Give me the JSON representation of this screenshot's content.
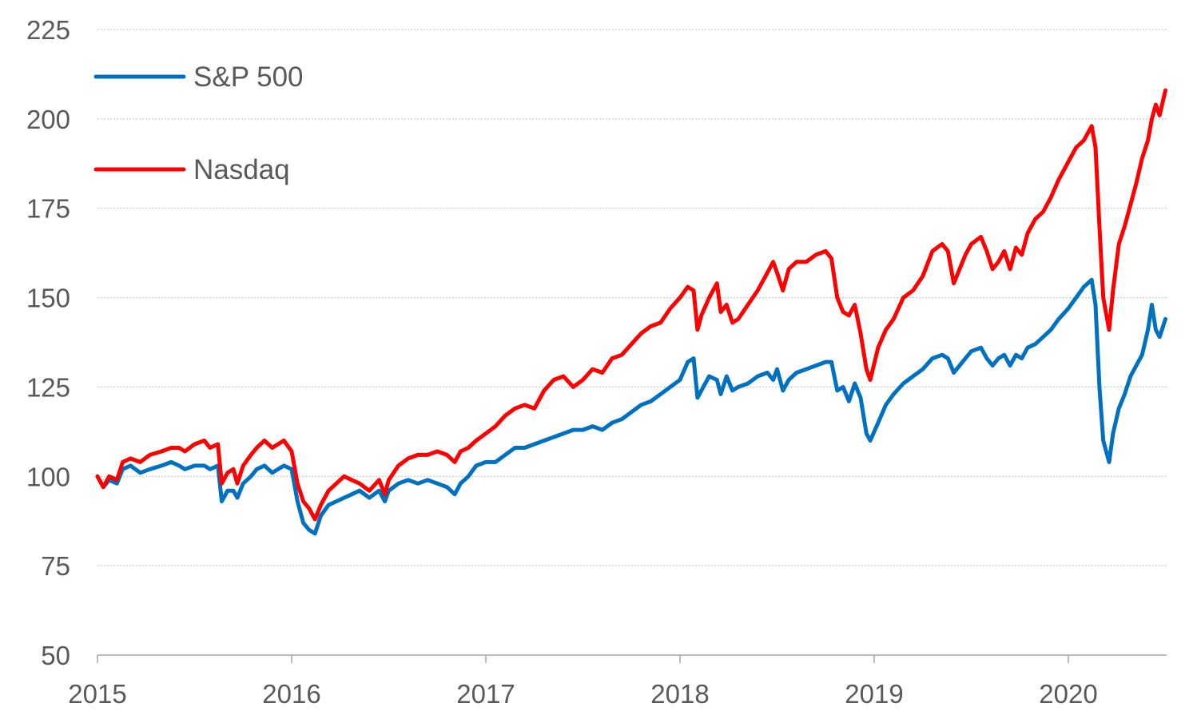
{
  "chart_data": {
    "type": "line",
    "title": "",
    "xlabel": "",
    "ylabel": "",
    "ylim": [
      50,
      225
    ],
    "yticks": [
      50,
      75,
      100,
      125,
      150,
      175,
      200,
      225
    ],
    "xlim": [
      2015.0,
      2020.5
    ],
    "xticks": [
      "2015",
      "2016",
      "2017",
      "2018",
      "2019",
      "2020"
    ],
    "grid": "horizontal dotted",
    "legend": "top-left",
    "series": [
      {
        "name": "S&P 500",
        "color": "#0070C0",
        "points": [
          [
            2015.0,
            100
          ],
          [
            2015.03,
            97
          ],
          [
            2015.06,
            99
          ],
          [
            2015.1,
            98
          ],
          [
            2015.13,
            102
          ],
          [
            2015.17,
            103
          ],
          [
            2015.22,
            101
          ],
          [
            2015.27,
            102
          ],
          [
            2015.33,
            103
          ],
          [
            2015.38,
            104
          ],
          [
            2015.42,
            103
          ],
          [
            2015.45,
            102
          ],
          [
            2015.5,
            103
          ],
          [
            2015.55,
            103
          ],
          [
            2015.58,
            102
          ],
          [
            2015.62,
            103
          ],
          [
            2015.64,
            93
          ],
          [
            2015.67,
            96
          ],
          [
            2015.7,
            96
          ],
          [
            2015.72,
            94
          ],
          [
            2015.75,
            98
          ],
          [
            2015.79,
            100
          ],
          [
            2015.82,
            102
          ],
          [
            2015.86,
            103
          ],
          [
            2015.9,
            101
          ],
          [
            2015.93,
            102
          ],
          [
            2015.96,
            103
          ],
          [
            2016.0,
            102
          ],
          [
            2016.03,
            93
          ],
          [
            2016.06,
            87
          ],
          [
            2016.09,
            85
          ],
          [
            2016.12,
            84
          ],
          [
            2016.15,
            89
          ],
          [
            2016.19,
            92
          ],
          [
            2016.23,
            93
          ],
          [
            2016.27,
            94
          ],
          [
            2016.31,
            95
          ],
          [
            2016.35,
            96
          ],
          [
            2016.4,
            94
          ],
          [
            2016.45,
            96
          ],
          [
            2016.48,
            93
          ],
          [
            2016.5,
            96
          ],
          [
            2016.55,
            98
          ],
          [
            2016.6,
            99
          ],
          [
            2016.65,
            98
          ],
          [
            2016.7,
            99
          ],
          [
            2016.75,
            98
          ],
          [
            2016.8,
            97
          ],
          [
            2016.84,
            95
          ],
          [
            2016.87,
            98
          ],
          [
            2016.91,
            100
          ],
          [
            2016.95,
            103
          ],
          [
            2017.0,
            104
          ],
          [
            2017.05,
            104
          ],
          [
            2017.1,
            106
          ],
          [
            2017.15,
            108
          ],
          [
            2017.2,
            108
          ],
          [
            2017.25,
            109
          ],
          [
            2017.3,
            110
          ],
          [
            2017.35,
            111
          ],
          [
            2017.4,
            112
          ],
          [
            2017.45,
            113
          ],
          [
            2017.5,
            113
          ],
          [
            2017.55,
            114
          ],
          [
            2017.6,
            113
          ],
          [
            2017.65,
            115
          ],
          [
            2017.7,
            116
          ],
          [
            2017.75,
            118
          ],
          [
            2017.8,
            120
          ],
          [
            2017.85,
            121
          ],
          [
            2017.9,
            123
          ],
          [
            2017.95,
            125
          ],
          [
            2018.0,
            127
          ],
          [
            2018.04,
            132
          ],
          [
            2018.07,
            133
          ],
          [
            2018.09,
            122
          ],
          [
            2018.11,
            124
          ],
          [
            2018.15,
            128
          ],
          [
            2018.19,
            127
          ],
          [
            2018.21,
            123
          ],
          [
            2018.24,
            128
          ],
          [
            2018.27,
            124
          ],
          [
            2018.3,
            125
          ],
          [
            2018.35,
            126
          ],
          [
            2018.4,
            128
          ],
          [
            2018.45,
            129
          ],
          [
            2018.48,
            127
          ],
          [
            2018.5,
            130
          ],
          [
            2018.53,
            124
          ],
          [
            2018.56,
            127
          ],
          [
            2018.6,
            129
          ],
          [
            2018.65,
            130
          ],
          [
            2018.7,
            131
          ],
          [
            2018.75,
            132
          ],
          [
            2018.78,
            132
          ],
          [
            2018.81,
            124
          ],
          [
            2018.84,
            125
          ],
          [
            2018.87,
            121
          ],
          [
            2018.9,
            126
          ],
          [
            2018.93,
            122
          ],
          [
            2018.96,
            112
          ],
          [
            2018.98,
            110
          ],
          [
            2019.02,
            115
          ],
          [
            2019.06,
            120
          ],
          [
            2019.1,
            123
          ],
          [
            2019.15,
            126
          ],
          [
            2019.2,
            128
          ],
          [
            2019.25,
            130
          ],
          [
            2019.3,
            133
          ],
          [
            2019.35,
            134
          ],
          [
            2019.38,
            133
          ],
          [
            2019.41,
            129
          ],
          [
            2019.44,
            131
          ],
          [
            2019.47,
            133
          ],
          [
            2019.5,
            135
          ],
          [
            2019.55,
            136
          ],
          [
            2019.58,
            133
          ],
          [
            2019.61,
            131
          ],
          [
            2019.64,
            133
          ],
          [
            2019.67,
            134
          ],
          [
            2019.7,
            131
          ],
          [
            2019.73,
            134
          ],
          [
            2019.76,
            133
          ],
          [
            2019.79,
            136
          ],
          [
            2019.83,
            137
          ],
          [
            2019.87,
            139
          ],
          [
            2019.91,
            141
          ],
          [
            2019.95,
            144
          ],
          [
            2020.0,
            147
          ],
          [
            2020.04,
            150
          ],
          [
            2020.08,
            153
          ],
          [
            2020.12,
            155
          ],
          [
            2020.14,
            148
          ],
          [
            2020.16,
            125
          ],
          [
            2020.18,
            110
          ],
          [
            2020.21,
            104
          ],
          [
            2020.23,
            112
          ],
          [
            2020.26,
            119
          ],
          [
            2020.29,
            123
          ],
          [
            2020.32,
            128
          ],
          [
            2020.35,
            131
          ],
          [
            2020.38,
            134
          ],
          [
            2020.41,
            141
          ],
          [
            2020.43,
            148
          ],
          [
            2020.45,
            141
          ],
          [
            2020.47,
            139
          ],
          [
            2020.5,
            144
          ]
        ]
      },
      {
        "name": "Nasdaq",
        "color": "#FF0000",
        "points": [
          [
            2015.0,
            100
          ],
          [
            2015.03,
            97
          ],
          [
            2015.06,
            100
          ],
          [
            2015.1,
            99
          ],
          [
            2015.13,
            104
          ],
          [
            2015.17,
            105
          ],
          [
            2015.22,
            104
          ],
          [
            2015.27,
            106
          ],
          [
            2015.33,
            107
          ],
          [
            2015.38,
            108
          ],
          [
            2015.42,
            108
          ],
          [
            2015.45,
            107
          ],
          [
            2015.5,
            109
          ],
          [
            2015.55,
            110
          ],
          [
            2015.58,
            108
          ],
          [
            2015.62,
            109
          ],
          [
            2015.64,
            98
          ],
          [
            2015.67,
            101
          ],
          [
            2015.7,
            102
          ],
          [
            2015.72,
            98
          ],
          [
            2015.75,
            103
          ],
          [
            2015.79,
            106
          ],
          [
            2015.82,
            108
          ],
          [
            2015.86,
            110
          ],
          [
            2015.9,
            108
          ],
          [
            2015.93,
            109
          ],
          [
            2015.96,
            110
          ],
          [
            2016.0,
            107
          ],
          [
            2016.03,
            98
          ],
          [
            2016.06,
            93
          ],
          [
            2016.09,
            91
          ],
          [
            2016.12,
            88
          ],
          [
            2016.15,
            92
          ],
          [
            2016.19,
            96
          ],
          [
            2016.23,
            98
          ],
          [
            2016.27,
            100
          ],
          [
            2016.31,
            99
          ],
          [
            2016.35,
            98
          ],
          [
            2016.4,
            96
          ],
          [
            2016.45,
            99
          ],
          [
            2016.48,
            95
          ],
          [
            2016.5,
            99
          ],
          [
            2016.55,
            103
          ],
          [
            2016.6,
            105
          ],
          [
            2016.65,
            106
          ],
          [
            2016.7,
            106
          ],
          [
            2016.75,
            107
          ],
          [
            2016.8,
            106
          ],
          [
            2016.84,
            104
          ],
          [
            2016.87,
            107
          ],
          [
            2016.91,
            108
          ],
          [
            2016.95,
            110
          ],
          [
            2017.0,
            112
          ],
          [
            2017.05,
            114
          ],
          [
            2017.1,
            117
          ],
          [
            2017.15,
            119
          ],
          [
            2017.2,
            120
          ],
          [
            2017.25,
            119
          ],
          [
            2017.3,
            124
          ],
          [
            2017.35,
            127
          ],
          [
            2017.4,
            128
          ],
          [
            2017.45,
            125
          ],
          [
            2017.5,
            127
          ],
          [
            2017.55,
            130
          ],
          [
            2017.6,
            129
          ],
          [
            2017.65,
            133
          ],
          [
            2017.7,
            134
          ],
          [
            2017.75,
            137
          ],
          [
            2017.8,
            140
          ],
          [
            2017.85,
            142
          ],
          [
            2017.9,
            143
          ],
          [
            2017.95,
            147
          ],
          [
            2018.0,
            150
          ],
          [
            2018.04,
            153
          ],
          [
            2018.07,
            152
          ],
          [
            2018.09,
            141
          ],
          [
            2018.11,
            145
          ],
          [
            2018.15,
            150
          ],
          [
            2018.19,
            154
          ],
          [
            2018.21,
            146
          ],
          [
            2018.24,
            148
          ],
          [
            2018.27,
            143
          ],
          [
            2018.3,
            144
          ],
          [
            2018.35,
            148
          ],
          [
            2018.4,
            152
          ],
          [
            2018.45,
            157
          ],
          [
            2018.48,
            160
          ],
          [
            2018.5,
            157
          ],
          [
            2018.53,
            152
          ],
          [
            2018.56,
            158
          ],
          [
            2018.6,
            160
          ],
          [
            2018.65,
            160
          ],
          [
            2018.7,
            162
          ],
          [
            2018.75,
            163
          ],
          [
            2018.78,
            161
          ],
          [
            2018.81,
            150
          ],
          [
            2018.84,
            146
          ],
          [
            2018.87,
            145
          ],
          [
            2018.9,
            148
          ],
          [
            2018.93,
            140
          ],
          [
            2018.96,
            130
          ],
          [
            2018.98,
            127
          ],
          [
            2019.02,
            136
          ],
          [
            2019.06,
            141
          ],
          [
            2019.1,
            144
          ],
          [
            2019.15,
            150
          ],
          [
            2019.2,
            152
          ],
          [
            2019.25,
            156
          ],
          [
            2019.3,
            163
          ],
          [
            2019.35,
            165
          ],
          [
            2019.38,
            163
          ],
          [
            2019.41,
            154
          ],
          [
            2019.44,
            158
          ],
          [
            2019.47,
            162
          ],
          [
            2019.5,
            165
          ],
          [
            2019.55,
            167
          ],
          [
            2019.58,
            163
          ],
          [
            2019.61,
            158
          ],
          [
            2019.64,
            160
          ],
          [
            2019.67,
            163
          ],
          [
            2019.7,
            158
          ],
          [
            2019.73,
            164
          ],
          [
            2019.76,
            162
          ],
          [
            2019.79,
            168
          ],
          [
            2019.83,
            172
          ],
          [
            2019.87,
            174
          ],
          [
            2019.91,
            178
          ],
          [
            2019.95,
            183
          ],
          [
            2020.0,
            188
          ],
          [
            2020.04,
            192
          ],
          [
            2020.08,
            194
          ],
          [
            2020.12,
            198
          ],
          [
            2020.14,
            192
          ],
          [
            2020.16,
            170
          ],
          [
            2020.18,
            150
          ],
          [
            2020.21,
            141
          ],
          [
            2020.23,
            152
          ],
          [
            2020.26,
            165
          ],
          [
            2020.29,
            170
          ],
          [
            2020.32,
            176
          ],
          [
            2020.35,
            182
          ],
          [
            2020.38,
            189
          ],
          [
            2020.41,
            194
          ],
          [
            2020.43,
            200
          ],
          [
            2020.45,
            204
          ],
          [
            2020.47,
            201
          ],
          [
            2020.5,
            208
          ]
        ]
      }
    ]
  }
}
